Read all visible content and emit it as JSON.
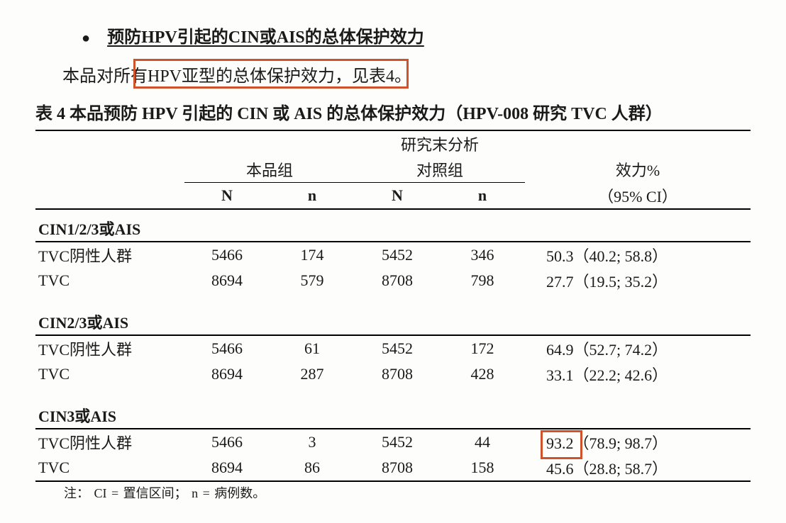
{
  "heading": "预防HPV引起的CIN或AIS的总体保护效力",
  "intro_prefix": "本品对",
  "intro_highlight": "所有HPV亚型的总体保护效力，",
  "intro_suffix": "见表4。",
  "table_title": "表 4 本品预防 HPV 引起的 CIN 或 AIS 的总体保护效力（HPV-008 研究 TVC 人群）",
  "header": {
    "analysis_line": "研究末分析",
    "group_product": "本品组",
    "group_control": "对照组",
    "eff_label": "效力%",
    "eff_ci": "（95% CI）",
    "N": "N",
    "n": "n"
  },
  "sections": [
    {
      "title": "CIN1/2/3或AIS",
      "rows": [
        {
          "label": "TVC阴性人群",
          "pN": "5466",
          "pn": "174",
          "cN": "5452",
          "cn": "346",
          "eff": "50.3（40.2; 58.8）"
        },
        {
          "label": "TVC",
          "pN": "8694",
          "pn": "579",
          "cN": "8708",
          "cn": "798",
          "eff": "27.7（19.5; 35.2）"
        }
      ]
    },
    {
      "title": "CIN2/3或AIS",
      "rows": [
        {
          "label": "TVC阴性人群",
          "pN": "5466",
          "pn": "61",
          "cN": "5452",
          "cn": "172",
          "eff": "64.9（52.7; 74.2）"
        },
        {
          "label": "TVC",
          "pN": "8694",
          "pn": "287",
          "cN": "8708",
          "cn": "428",
          "eff": "33.1（22.2; 42.6）"
        }
      ]
    },
    {
      "title": "CIN3或AIS",
      "rows": [
        {
          "label": "TVC阴性人群",
          "pN": "5466",
          "pn": "3",
          "cN": "5452",
          "cn": "44",
          "eff_a": "93.2",
          "eff_b": "（78.9; 98.7）"
        },
        {
          "label": "TVC",
          "pN": "8694",
          "pn": "86",
          "cN": "8708",
          "cn": "158",
          "eff": "45.6（28.8; 58.7）"
        }
      ]
    }
  ],
  "footnote": "注： CI = 置信区间； n = 病例数。",
  "colors": {
    "highlight_border": "#d0522a",
    "text": "#1a1a1a",
    "background": "#fdfdfb"
  }
}
